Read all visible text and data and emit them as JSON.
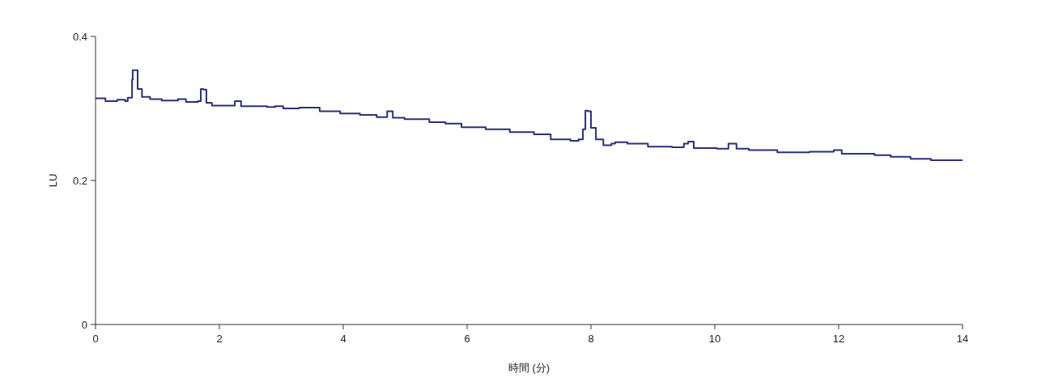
{
  "chart_data": {
    "type": "step",
    "xlabel": "時間 (分)",
    "ylabel": "LU",
    "x": [
      0,
      0.16,
      0.35,
      0.48,
      0.52,
      0.59,
      0.6,
      0.64,
      0.68,
      0.75,
      0.88,
      1.07,
      1.33,
      1.46,
      1.65,
      1.7,
      1.74,
      1.79,
      1.88,
      2.18,
      2.25,
      2.35,
      2.77,
      2.9,
      3.03,
      3.29,
      3.62,
      3.95,
      4.27,
      4.54,
      4.71,
      4.8,
      4.99,
      5.39,
      5.65,
      5.91,
      6.3,
      6.69,
      7.08,
      7.35,
      7.67,
      7.8,
      7.87,
      7.91,
      7.95,
      8.0,
      8.08,
      8.2,
      8.33,
      8.39,
      8.59,
      8.92,
      9.31,
      9.5,
      9.57,
      9.66,
      10.03,
      10.13,
      10.22,
      10.35,
      10.55,
      11.01,
      11.53,
      11.92,
      12.05,
      12.58,
      12.84,
      13.16,
      13.49,
      14.0
    ],
    "series": [
      {
        "color": "#2b2f77",
        "values": [
          0.314,
          0.31,
          0.312,
          0.31,
          0.315,
          0.34,
          0.353,
          0.353,
          0.327,
          0.316,
          0.313,
          0.311,
          0.313,
          0.309,
          0.31,
          0.327,
          0.326,
          0.308,
          0.304,
          0.304,
          0.31,
          0.303,
          0.302,
          0.303,
          0.3,
          0.301,
          0.296,
          0.293,
          0.291,
          0.288,
          0.296,
          0.287,
          0.285,
          0.281,
          0.279,
          0.274,
          0.271,
          0.267,
          0.264,
          0.257,
          0.255,
          0.257,
          0.271,
          0.297,
          0.296,
          0.273,
          0.257,
          0.249,
          0.251,
          0.253,
          0.251,
          0.247,
          0.246,
          0.251,
          0.254,
          0.245,
          0.244,
          0.244,
          0.251,
          0.244,
          0.242,
          0.239,
          0.24,
          0.242,
          0.237,
          0.235,
          0.233,
          0.23,
          0.228,
          0.228
        ]
      }
    ],
    "xlim": [
      0,
      14
    ],
    "xticks": [
      0,
      2,
      4,
      6,
      8,
      10,
      12,
      14
    ],
    "ylim": [
      0,
      0.4
    ],
    "yticks": [
      0,
      0.2,
      0.4
    ],
    "grid": false,
    "marker": "none",
    "line_style": "solid"
  }
}
